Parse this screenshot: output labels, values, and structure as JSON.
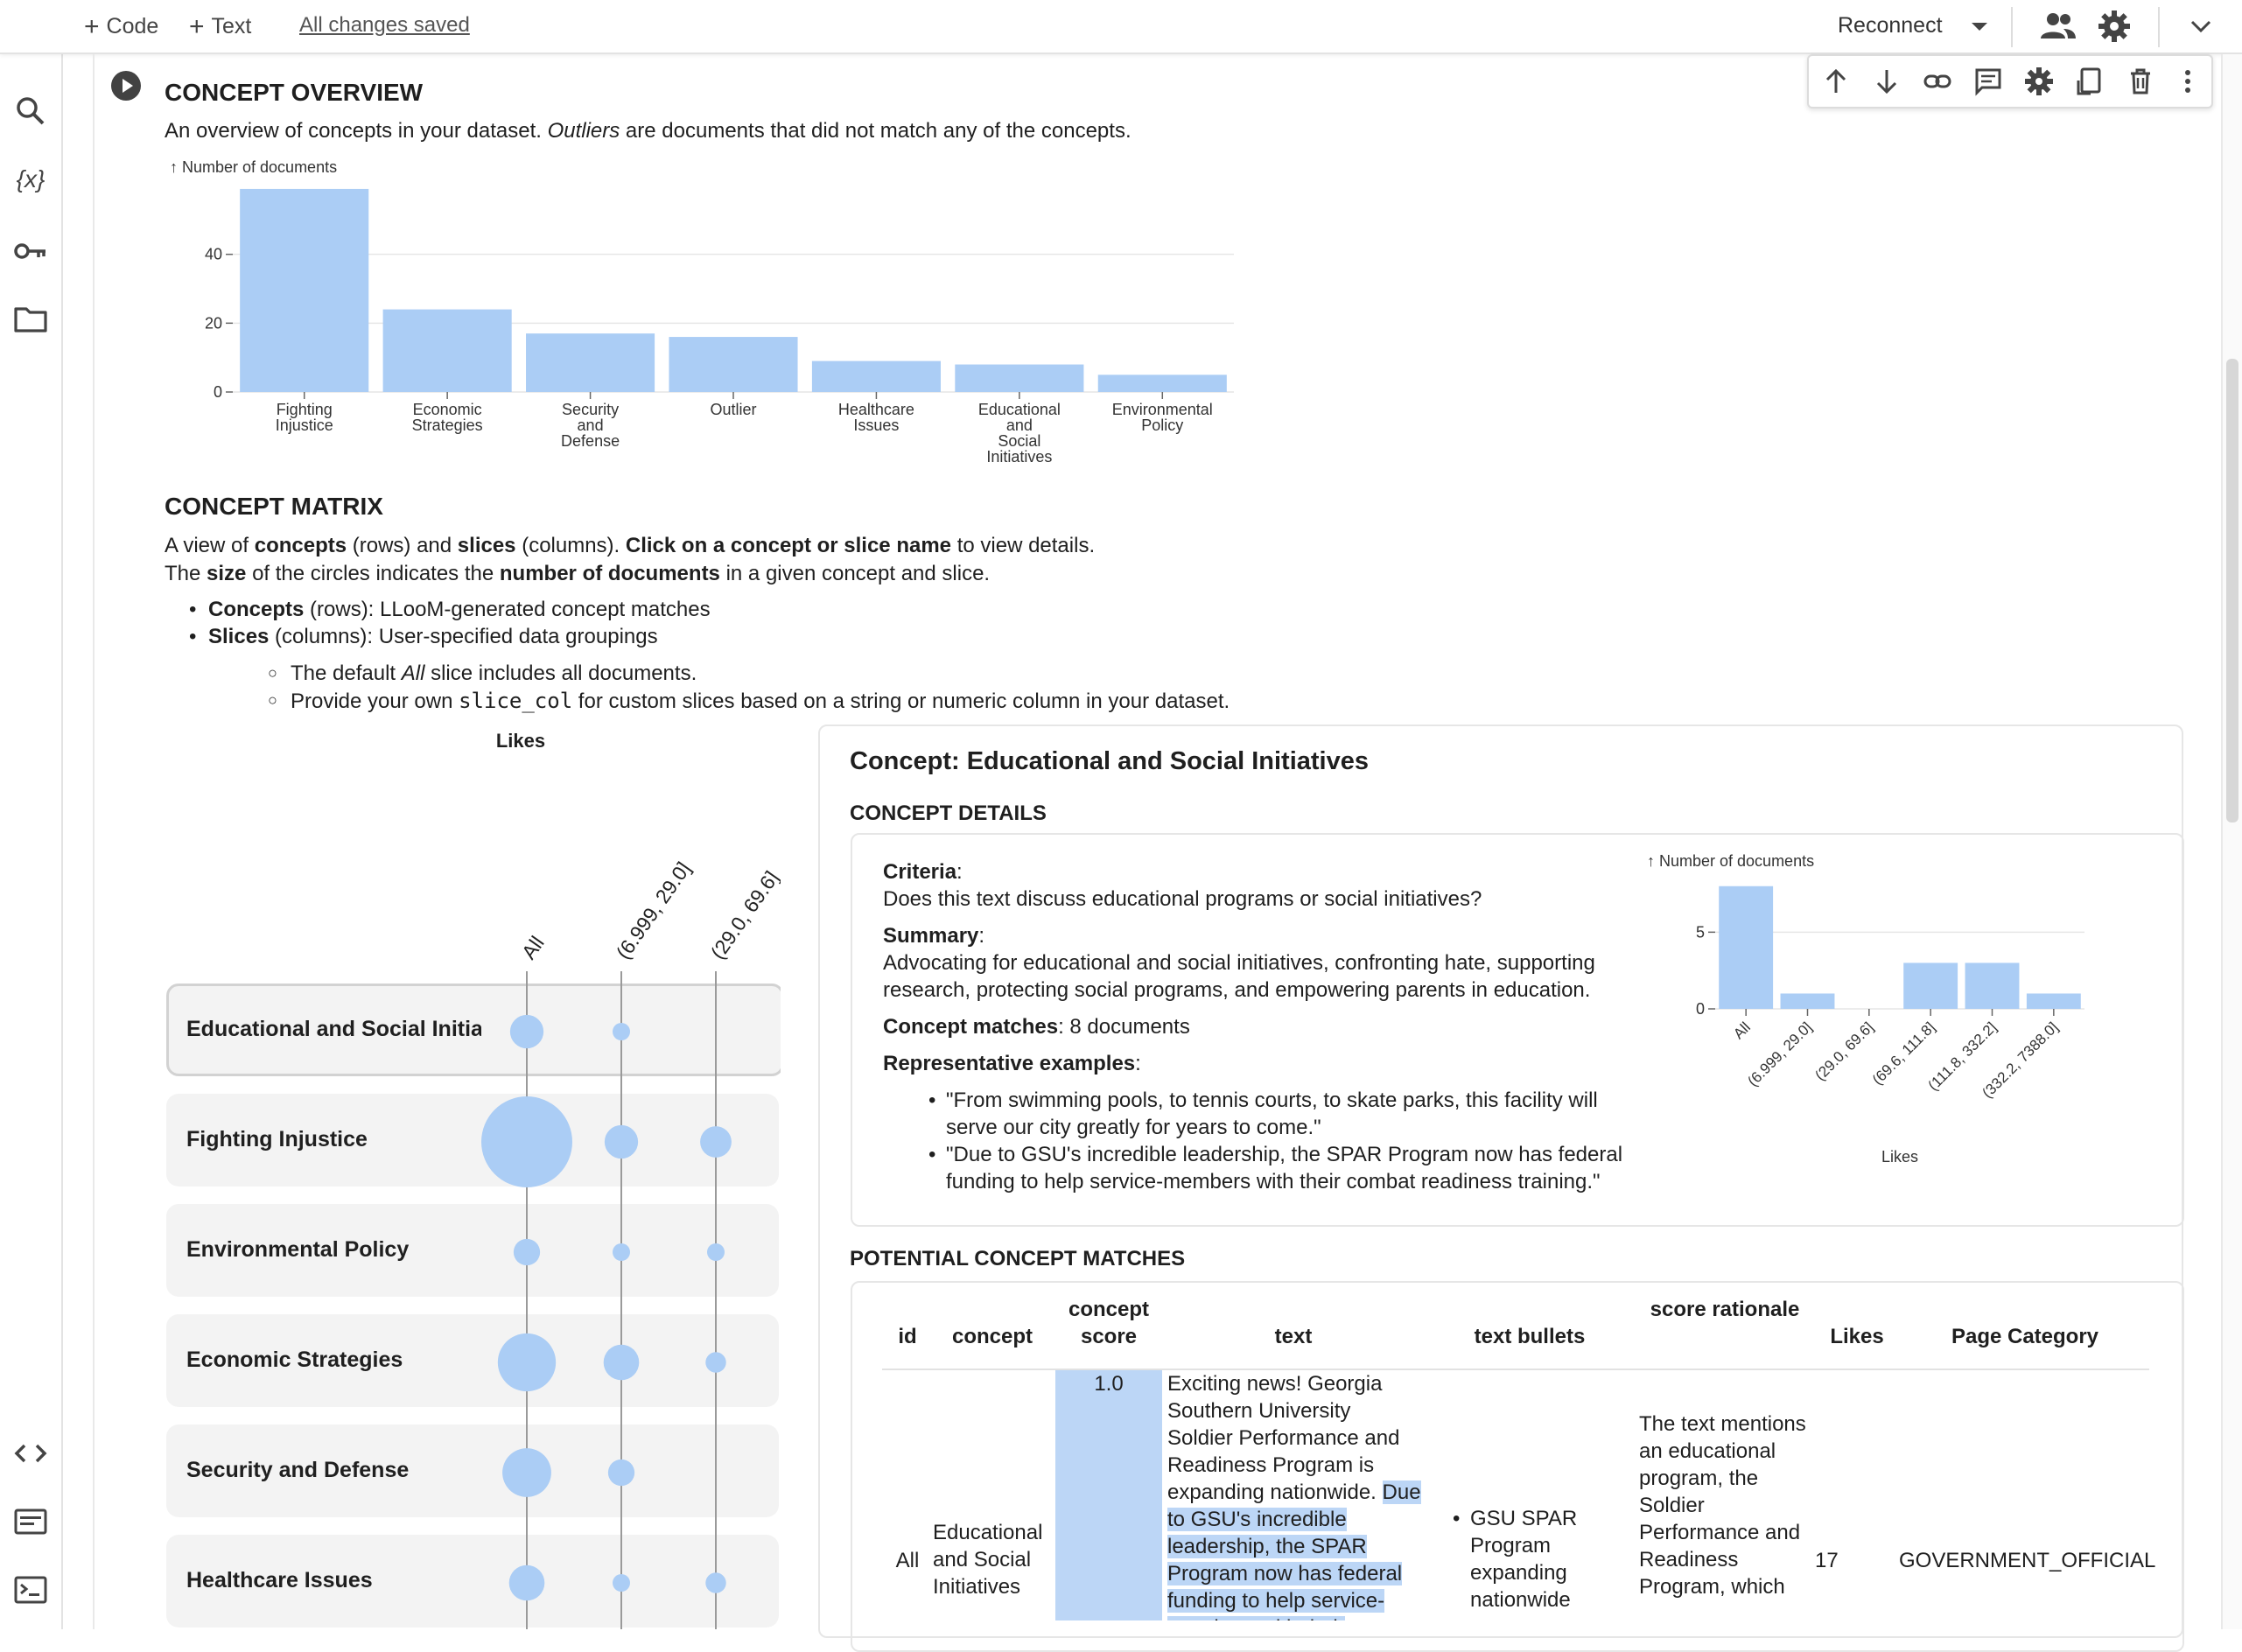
{
  "toolbar": {
    "add_code": "Code",
    "add_text": "Text",
    "save_status": "All changes saved",
    "reconnect": "Reconnect"
  },
  "overview": {
    "title": "CONCEPT OVERVIEW",
    "desc_pre": "An overview of concepts in your dataset. ",
    "desc_em": "Outliers",
    "desc_post": " are documents that did not match any of the concepts.",
    "chart_data": {
      "type": "bar",
      "ylabel": "↑ Number of documents",
      "categories": [
        "Fighting Injustice",
        "Economic Strategies",
        "Security and Defense",
        "Outlier",
        "Healthcare Issues",
        "Educational and Social Initiatives",
        "Environmental Policy"
      ],
      "tick_labels": [
        [
          "Fighting",
          "Injustice"
        ],
        [
          "Economic",
          "Strategies"
        ],
        [
          "Security",
          "and",
          "Defense"
        ],
        [
          "Outlier"
        ],
        [
          "Healthcare",
          "Issues"
        ],
        [
          "Educational",
          "and",
          "Social",
          "Initiatives"
        ],
        [
          "Environmental",
          "Policy"
        ]
      ],
      "values": [
        59,
        24,
        17,
        16,
        9,
        8,
        5
      ],
      "yticks": [
        0,
        20,
        40
      ],
      "ylim": [
        0,
        60
      ],
      "grid": true,
      "color": "#abcdf5"
    }
  },
  "matrix": {
    "title": "CONCEPT MATRIX",
    "line1": {
      "a": "A view of ",
      "b": "concepts",
      "c": " (rows) and ",
      "d": "slices",
      "e": " (columns). ",
      "f": "Click on a concept or slice name",
      "g": " to view details."
    },
    "line2": {
      "a": "The ",
      "b": "size",
      "c": " of the circles indicates the ",
      "d": "number of documents",
      "e": " in a given concept and slice."
    },
    "bullet1": {
      "b": "Concepts",
      "t": " (rows): LLooM-generated concept matches"
    },
    "bullet2": {
      "b": "Slices",
      "t": " (columns): User-specified data groupings"
    },
    "sub1": {
      "a": "The default ",
      "em": "All",
      "b": " slice includes all documents."
    },
    "sub2": {
      "a": "Provide your own ",
      "code": "slice_col",
      "b": " for custom slices based on a string or numeric column in your dataset."
    },
    "column_header": "Likes",
    "columns": [
      "All",
      "(6.999, 29.0]",
      "(29.0, 69.6]"
    ],
    "rows": [
      {
        "label": "Educational and Social Initiatives",
        "counts": [
          8,
          1,
          0
        ]
      },
      {
        "label": "Fighting Injustice",
        "counts": [
          59,
          8,
          7
        ]
      },
      {
        "label": "Environmental Policy",
        "counts": [
          5,
          2,
          1
        ]
      },
      {
        "label": "Economic Strategies",
        "counts": [
          24,
          9,
          3
        ]
      },
      {
        "label": "Security and Defense",
        "counts": [
          17,
          5,
          0
        ]
      },
      {
        "label": "Healthcare Issues",
        "counts": [
          9,
          2,
          3
        ]
      }
    ]
  },
  "detail": {
    "title": "Concept: Educational and Social Initiatives",
    "details_header": "CONCEPT DETAILS",
    "criteria_label": "Criteria",
    "criteria": "Does this text discuss educational programs or social initiatives?",
    "summary_label": "Summary",
    "summary_l1": "Advocating for educational and social initiatives, confronting hate, supporting",
    "summary_l2": "research, protecting social programs, and empowering parents in education.",
    "matches_label": "Concept matches",
    "matches_value": ": 8 documents",
    "examples_label": "Representative examples",
    "ex1_l1": "\"From swimming pools, to tennis courts, to skate parks, this facility will",
    "ex1_l2": "serve our city greatly for years to come.\"",
    "ex2_l1": "\"Due to GSU's incredible leadership, the SPAR Program now has federal",
    "ex2_l2": "funding to help service-members with their combat readiness training.\"",
    "chart_data": {
      "type": "bar",
      "ylabel": "↑ Number of documents",
      "xlabel": "Likes",
      "categories": [
        "All",
        "(6.999, 29.0]",
        "(29.0, 69.6]",
        "(69.6, 111.8]",
        "(111.8, 332.2]",
        "(332.2, 7388.0]"
      ],
      "values": [
        8,
        1,
        0,
        3,
        3,
        1
      ],
      "yticks": [
        0,
        5
      ],
      "ylim": [
        0,
        8.5
      ],
      "color": "#abcdf5"
    },
    "potential_header": "POTENTIAL CONCEPT MATCHES",
    "table": {
      "headers": [
        "id",
        "concept",
        "concept score",
        "text",
        "text bullets",
        "score rationale",
        "Likes",
        "Page Category"
      ],
      "row": {
        "id": "All",
        "concept": "Educational and Social Initiatives",
        "score": "1.0",
        "text_plain": "Exciting news! Georgia Southern University Soldier Performance and Readiness Program is expanding nationwide.",
        "text_highlight": "Due to GSU's incredible leadership, the SPAR Program now has federal funding to help service-members with their",
        "bullet": "GSU SPAR Program expanding nationwide",
        "rationale": "The text mentions an educational program, the Soldier Performance and Readiness Program, which",
        "likes": "17",
        "category": "GOVERNMENT_OFFICIAL"
      }
    }
  }
}
